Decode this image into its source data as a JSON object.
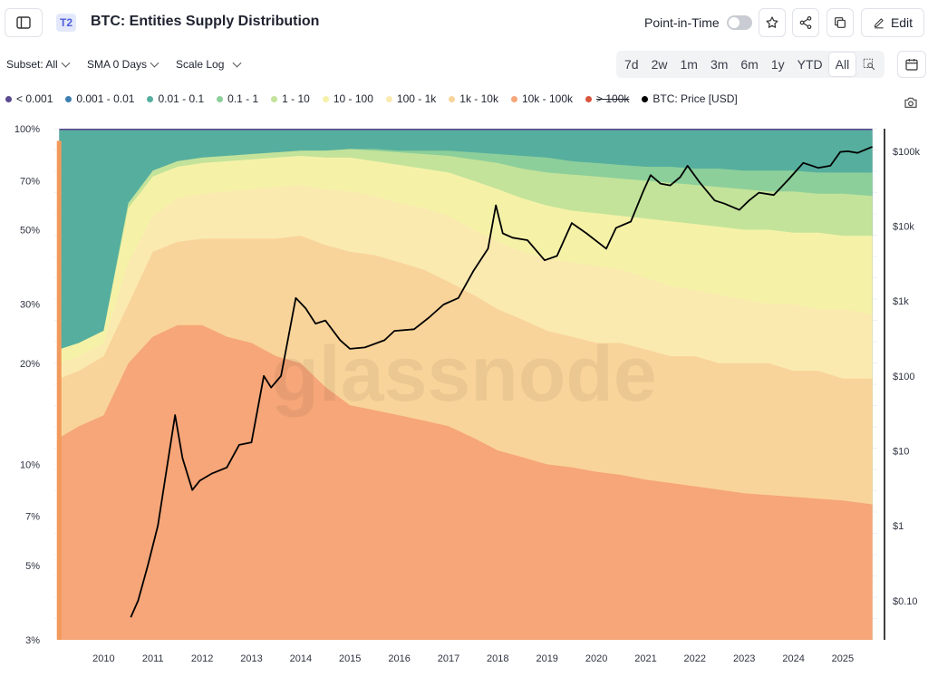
{
  "header": {
    "badge": "T2",
    "title": "BTC: Entities Supply Distribution",
    "point_in_time_label": "Point-in-Time",
    "edit_label": "Edit"
  },
  "controls": {
    "subset": "Subset: All",
    "sma": "SMA 0 Days",
    "scale": "Scale Log"
  },
  "ranges": [
    "7d",
    "2w",
    "1m",
    "3m",
    "6m",
    "1y",
    "YTD",
    "All"
  ],
  "active_range": "All",
  "watermark": "glassnode",
  "chart_data": {
    "type": "area",
    "title": "BTC: Entities Supply Distribution",
    "stacking": "cumulative share of supply by entity balance cohort (100% stacked)",
    "x_ticks": [
      "2010",
      "2011",
      "2012",
      "2013",
      "2014",
      "2015",
      "2016",
      "2017",
      "2018",
      "2019",
      "2020",
      "2021",
      "2022",
      "2023",
      "2024",
      "2025"
    ],
    "x": [
      2009.1,
      2009.5,
      2010.0,
      2010.5,
      2011.0,
      2011.5,
      2012.0,
      2012.5,
      2013.0,
      2013.5,
      2014.0,
      2014.5,
      2015.0,
      2015.5,
      2016.0,
      2016.5,
      2017.0,
      2017.5,
      2018.0,
      2018.5,
      2019.0,
      2019.5,
      2020.0,
      2020.5,
      2021.0,
      2021.5,
      2022.0,
      2022.5,
      2023.0,
      2023.5,
      2024.0,
      2024.5,
      2025.0,
      2025.6
    ],
    "y_left": {
      "scale": "log",
      "unit": "%",
      "ticks": [
        "100%",
        "70%",
        "50%",
        "30%",
        "20%",
        "10%",
        "7%",
        "5%",
        "3%"
      ],
      "range": [
        3,
        100
      ]
    },
    "y_right": {
      "scale": "log",
      "label": "BTC: Price [USD]",
      "ticks": [
        "$100k",
        "$10k",
        "$1k",
        "$100",
        "$10",
        "$1",
        "$0.10"
      ],
      "range": [
        0.03,
        200000
      ]
    },
    "legend_placement": "top-left",
    "series": [
      {
        "name": "< 0.001",
        "color": "#5b4a8f",
        "cum": [
          100,
          100,
          100,
          100,
          100,
          100,
          100,
          100,
          100,
          100,
          100,
          100,
          100,
          100,
          100,
          100,
          100,
          100,
          100,
          100,
          100,
          100,
          100,
          100,
          100,
          100,
          100,
          100,
          100,
          100,
          100,
          100,
          100,
          100
        ]
      },
      {
        "name": "0.001 - 0.01",
        "color": "#3d7fb0",
        "cum": [
          99,
          99,
          99,
          99,
          99,
          99,
          99,
          99,
          99,
          99,
          99,
          99,
          99,
          99,
          99,
          99,
          99,
          99,
          99,
          99,
          99,
          99,
          99,
          99,
          99,
          99,
          99,
          99,
          99,
          99,
          99,
          99,
          99,
          99
        ]
      },
      {
        "name": "0.01 - 0.1",
        "color": "#56ae9e",
        "cum": [
          99,
          99,
          99,
          99,
          99,
          99,
          99,
          99,
          99,
          99,
          99,
          99,
          99,
          99,
          99,
          99,
          99,
          99,
          99,
          99,
          99,
          99,
          99,
          99,
          99,
          99,
          99,
          99,
          99,
          99,
          99,
          99,
          99,
          99
        ]
      },
      {
        "name": "0.1 - 1",
        "color": "#8ccf9a",
        "cum": [
          22,
          23,
          25,
          60,
          75,
          80,
          82,
          83,
          84,
          85,
          86,
          86,
          87,
          87,
          86,
          86,
          86,
          85,
          84,
          83,
          82,
          80,
          79,
          78,
          77,
          77,
          76,
          76,
          75,
          75,
          75,
          74,
          74,
          74
        ]
      },
      {
        "name": "1 - 10",
        "color": "#c3e39a",
        "cum": [
          22,
          23,
          25,
          60,
          75,
          80,
          82,
          83,
          84,
          85,
          86,
          86,
          87,
          86,
          85,
          84,
          83,
          81,
          79,
          76,
          74,
          73,
          72,
          71,
          70,
          69,
          68,
          67,
          66,
          65,
          65,
          64,
          64,
          63
        ]
      },
      {
        "name": "10 - 100",
        "color": "#f5f2a8",
        "cum": [
          22,
          23,
          25,
          58,
          72,
          77,
          79,
          80,
          81,
          82,
          83,
          82,
          82,
          80,
          78,
          76,
          74,
          70,
          66,
          62,
          59,
          57,
          56,
          55,
          54,
          53,
          52,
          51,
          50,
          50,
          49,
          49,
          48,
          48
        ]
      },
      {
        "name": "100 - 1k",
        "color": "#faeab0",
        "cum": [
          20,
          21,
          23,
          40,
          55,
          62,
          64,
          65,
          66,
          67,
          68,
          66,
          65,
          63,
          60,
          58,
          55,
          50,
          46,
          43,
          41,
          40,
          39,
          38,
          36,
          34,
          33,
          32,
          31,
          30,
          30,
          29,
          29,
          28
        ]
      },
      {
        "name": "1k - 10k",
        "color": "#f9d49a",
        "cum": [
          18,
          19,
          21,
          30,
          43,
          46,
          47,
          47,
          47,
          47,
          48,
          45,
          43,
          42,
          40,
          38,
          35,
          32,
          29,
          27,
          25,
          24,
          23,
          23,
          22,
          21,
          21,
          20,
          20,
          20,
          19,
          19,
          18,
          18
        ]
      },
      {
        "name": "10k - 100k",
        "color": "#f6a678",
        "cum": [
          12,
          13,
          14,
          20,
          24,
          26,
          26,
          24,
          23,
          21,
          20,
          17,
          15,
          14.5,
          14,
          13.5,
          13,
          12,
          11,
          10.5,
          10,
          9.8,
          9.5,
          9.3,
          9.0,
          8.8,
          8.6,
          8.4,
          8.2,
          8.1,
          8.0,
          7.9,
          7.8,
          7.6
        ]
      },
      {
        "name": "> 100k",
        "color": "#d9543c",
        "hidden": true,
        "cum": []
      }
    ],
    "price": {
      "name": "BTC: Price [USD]",
      "color": "#000000",
      "x": [
        2010.55,
        2010.7,
        2010.9,
        2011.1,
        2011.45,
        2011.6,
        2011.8,
        2011.95,
        2012.2,
        2012.5,
        2012.75,
        2013.0,
        2013.25,
        2013.4,
        2013.6,
        2013.9,
        2014.1,
        2014.3,
        2014.5,
        2014.8,
        2015.0,
        2015.3,
        2015.7,
        2015.9,
        2016.3,
        2016.6,
        2016.9,
        2017.2,
        2017.5,
        2017.8,
        2017.96,
        2018.1,
        2018.3,
        2018.6,
        2018.95,
        2019.2,
        2019.5,
        2019.8,
        2020.2,
        2020.4,
        2020.7,
        2020.95,
        2021.1,
        2021.3,
        2021.5,
        2021.7,
        2021.85,
        2022.1,
        2022.4,
        2022.6,
        2022.9,
        2023.1,
        2023.3,
        2023.6,
        2023.9,
        2024.2,
        2024.5,
        2024.75,
        2024.95,
        2025.1,
        2025.3,
        2025.6
      ],
      "values": [
        0.06,
        0.1,
        0.3,
        1,
        30,
        8,
        3,
        4,
        5,
        6,
        12,
        13,
        100,
        70,
        100,
        1100,
        800,
        500,
        550,
        300,
        230,
        240,
        300,
        400,
        420,
        600,
        900,
        1100,
        2500,
        5000,
        19000,
        8000,
        7000,
        6500,
        3500,
        4000,
        11000,
        8000,
        5000,
        9500,
        11500,
        29000,
        48000,
        37000,
        35000,
        45000,
        64000,
        38000,
        22000,
        20000,
        16500,
        22000,
        28000,
        26000,
        42000,
        70000,
        60000,
        64000,
        98000,
        100000,
        95000,
        115000
      ]
    }
  }
}
